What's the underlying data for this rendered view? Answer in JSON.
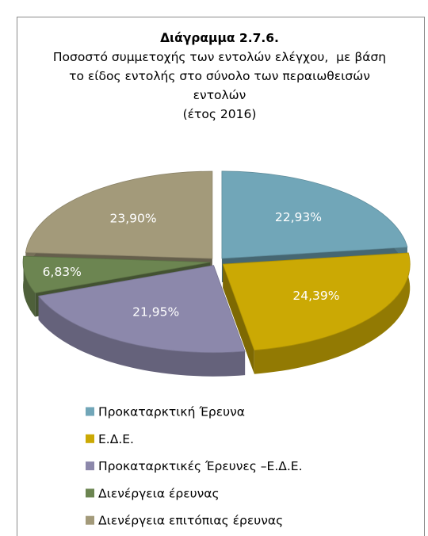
{
  "chart_data": {
    "type": "pie",
    "title": "Διάγραμμα 2.7.6.",
    "subtitle": "Ποσοστό συμμετοχής των εντολών ελέγχου,  με βάση το είδος εντολής στο σύνολο των περαιωθεισών εντολών",
    "note": "(έτος 2016)",
    "categories": [
      "Προκαταρκτική Έρευνα",
      "Ε.Δ.Ε.",
      "Προκαταρκτικές Έρευνες –Ε.Δ.Ε.",
      "Διενέργεια έρευνας",
      "Διενέργεια επιτόπιας έρευνας"
    ],
    "values": [
      22.93,
      24.39,
      21.95,
      6.83,
      23.9
    ],
    "value_labels": [
      "22,93%",
      "24,39%",
      "21,95%",
      "6,83%",
      "23,90%"
    ],
    "colors": [
      "#71a6b8",
      "#cba904",
      "#8c88ab",
      "#6c8551",
      "#a39a7a"
    ],
    "legend": "bottom"
  }
}
